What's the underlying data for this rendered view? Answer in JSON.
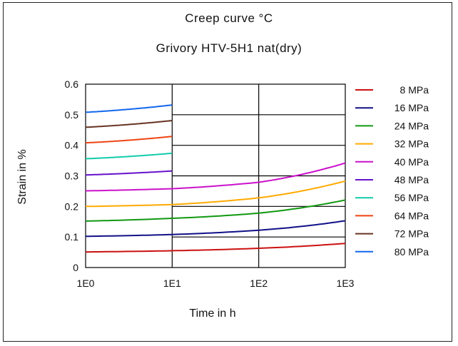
{
  "chart_data": {
    "type": "line",
    "title": "Creep curve °C",
    "subtitle": "Grivory HTV-5H1 nat(dry)",
    "xlabel": "Time in h",
    "ylabel": "Strain in %",
    "x_scale": "log",
    "xlim": [
      1,
      1000
    ],
    "ylim": [
      0,
      0.6
    ],
    "x_ticks": [
      "1E0",
      "1E1",
      "1E2",
      "1E3"
    ],
    "y_ticks": [
      "0",
      "0.1",
      "0.2",
      "0.3",
      "0.4",
      "0.5",
      "0.6"
    ],
    "grid": true,
    "legend_position": "right",
    "series": [
      {
        "name": "8 MPa",
        "color": "#cc1111",
        "x": [
          1,
          10,
          100,
          1000
        ],
        "values": [
          0.051,
          0.055,
          0.063,
          0.079
        ]
      },
      {
        "name": "16 MPa",
        "color": "#111188",
        "x": [
          1,
          10,
          100,
          1000
        ],
        "values": [
          0.102,
          0.108,
          0.122,
          0.153
        ]
      },
      {
        "name": "24 MPa",
        "color": "#119911",
        "x": [
          1,
          10,
          100,
          1000
        ],
        "values": [
          0.152,
          0.161,
          0.178,
          0.221
        ]
      },
      {
        "name": "32 MPa",
        "color": "#ffaa00",
        "x": [
          1,
          10,
          100,
          1000
        ],
        "values": [
          0.2,
          0.206,
          0.228,
          0.283
        ]
      },
      {
        "name": "40 MPa",
        "color": "#cc11cc",
        "x": [
          1,
          10,
          100,
          1000
        ],
        "values": [
          0.251,
          0.258,
          0.279,
          0.342
        ]
      },
      {
        "name": "48 MPa",
        "color": "#6611cc",
        "x": [
          1,
          10
        ],
        "values": [
          0.303,
          0.316
        ]
      },
      {
        "name": "56 MPa",
        "color": "#11ccaa",
        "x": [
          1,
          10
        ],
        "values": [
          0.356,
          0.374
        ]
      },
      {
        "name": "64 MPa",
        "color": "#ee4411",
        "x": [
          1,
          10
        ],
        "values": [
          0.408,
          0.429
        ]
      },
      {
        "name": "72 MPa",
        "color": "#663322",
        "x": [
          1,
          10
        ],
        "values": [
          0.459,
          0.481
        ]
      },
      {
        "name": "80 MPa",
        "color": "#1166ee",
        "x": [
          1,
          10
        ],
        "values": [
          0.508,
          0.532
        ]
      }
    ]
  }
}
